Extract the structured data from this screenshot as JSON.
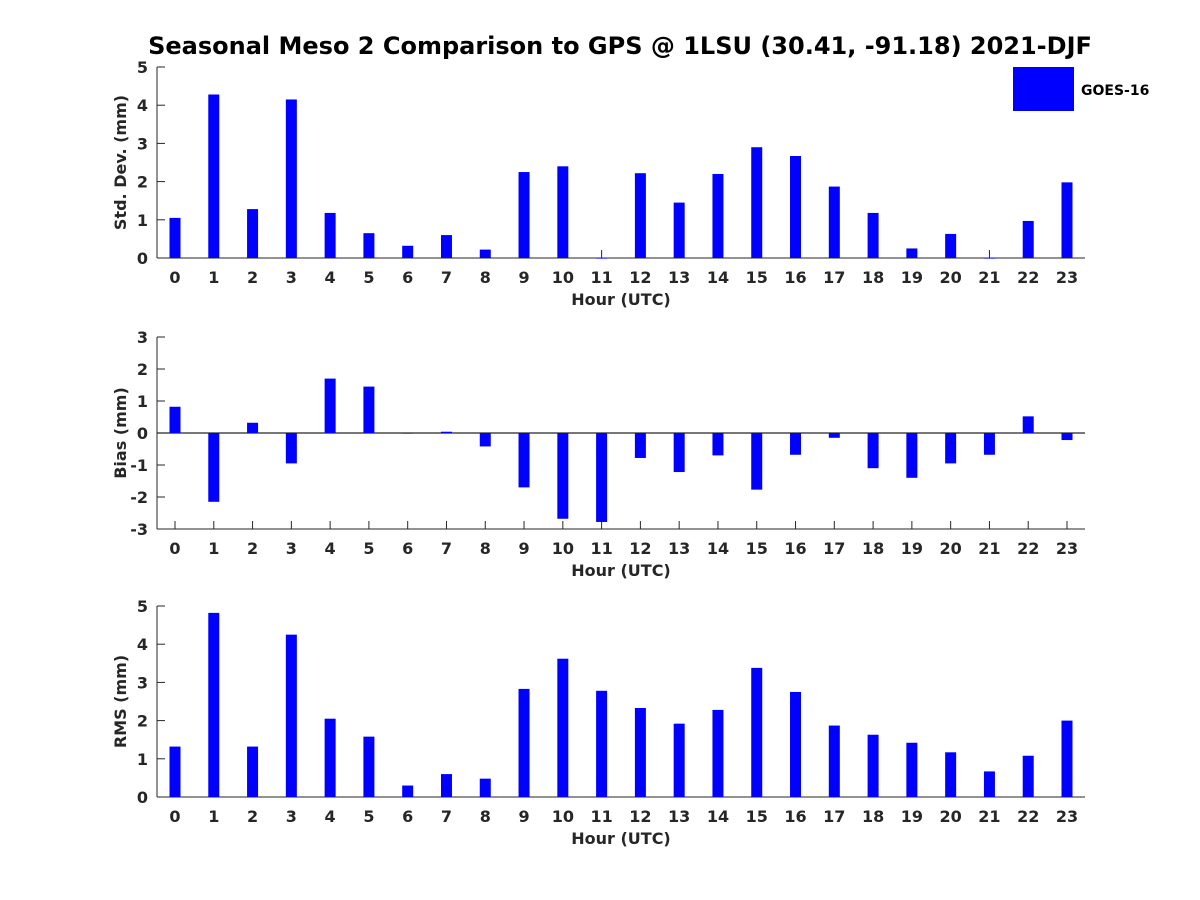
{
  "chart_data": {
    "type": "bar",
    "title": "Seasonal Meso 2 Comparison to GPS @ 1LSU (30.41, -91.18) 2021-DJF",
    "bar_color": "#0000ff",
    "axis_color": "#262626",
    "legend": {
      "label": "GOES-16",
      "placement": "top-right"
    },
    "categories": [
      "0",
      "1",
      "2",
      "3",
      "4",
      "5",
      "6",
      "7",
      "8",
      "9",
      "10",
      "11",
      "12",
      "13",
      "14",
      "15",
      "16",
      "17",
      "18",
      "19",
      "20",
      "21",
      "22",
      "23"
    ],
    "xlabel": "Hour (UTC)",
    "panels": [
      {
        "ylabel": "Std. Dev. (mm)",
        "ylim": [
          0,
          5
        ],
        "yticks": [
          "0",
          "1",
          "2",
          "3",
          "4",
          "5"
        ],
        "series": [
          {
            "name": "GOES-16",
            "values": [
              1.05,
              4.28,
              1.28,
              4.15,
              1.18,
              0.65,
              0.32,
              0.6,
              0.22,
              2.25,
              2.4,
              0,
              2.22,
              1.45,
              2.2,
              2.9,
              2.67,
              1.87,
              1.18,
              0.25,
              0.63,
              0,
              0.97,
              1.98
            ]
          }
        ]
      },
      {
        "ylabel": "Bias (mm)",
        "ylim": [
          -3,
          3
        ],
        "yticks": [
          "-3",
          "-2",
          "-1",
          "0",
          "1",
          "2",
          "3"
        ],
        "series": [
          {
            "name": "GOES-16",
            "values": [
              0.82,
              -2.15,
              0.32,
              -0.95,
              1.7,
              1.45,
              0,
              0.04,
              -0.42,
              -1.7,
              -2.68,
              -2.78,
              -0.78,
              -1.22,
              -0.7,
              -1.77,
              -0.68,
              -0.15,
              -1.1,
              -1.4,
              -0.95,
              -0.68,
              0.52,
              -0.22
            ]
          }
        ]
      },
      {
        "ylabel": "RMS (mm)",
        "ylim": [
          0,
          5
        ],
        "yticks": [
          "0",
          "1",
          "2",
          "3",
          "4",
          "5"
        ],
        "series": [
          {
            "name": "GOES-16",
            "values": [
              1.32,
              4.82,
              1.32,
              4.25,
              2.05,
              1.58,
              0.3,
              0.6,
              0.48,
              2.83,
              3.62,
              2.78,
              2.33,
              1.92,
              2.28,
              3.38,
              2.75,
              1.87,
              1.63,
              1.42,
              1.17,
              0.67,
              1.08,
              2.0
            ]
          }
        ]
      }
    ]
  }
}
